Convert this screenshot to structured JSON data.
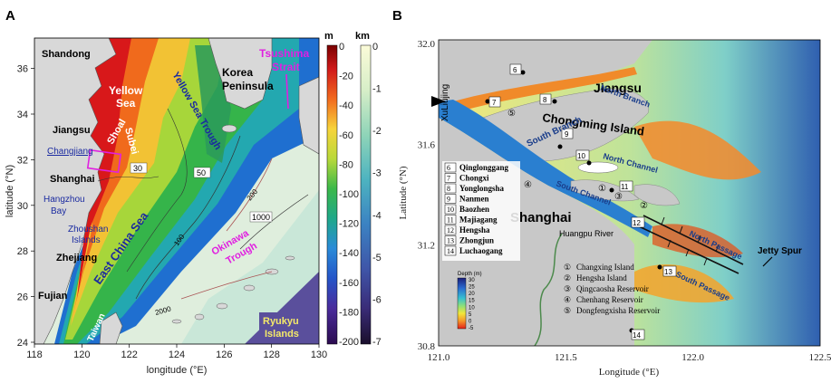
{
  "figure": {
    "panel_a": {
      "letter": "A",
      "y_axis_label": "latitude (°N)",
      "x_axis_label": "longitude (°E)",
      "x_ticks": [
        "118",
        "120",
        "122",
        "124",
        "126",
        "128",
        "130"
      ],
      "y_ticks": [
        "24",
        "26",
        "28",
        "30",
        "32",
        "34",
        "36"
      ],
      "colorbar_m": {
        "unit": "m",
        "ticks": [
          "0",
          "-20",
          "-40",
          "-60",
          "-80",
          "-100",
          "-120",
          "-140",
          "-160",
          "-180",
          "-200"
        ]
      },
      "colorbar_km": {
        "unit": "km",
        "ticks": [
          "0",
          "-1",
          "-2",
          "-3",
          "-4",
          "-5",
          "-6",
          "-7"
        ]
      },
      "labels": {
        "shandong": "Shandong",
        "yellow_sea_1": "Yellow",
        "yellow_sea_2": "Sea",
        "yellow_sea_trough": "Yellow Sea Trough",
        "korea_1": "Korea",
        "korea_2": "Peninsula",
        "tsushima_1": "Tsushima",
        "tsushima_2": "Strait",
        "jiangsu": "Jiangsu",
        "subei_1": "Subei",
        "subei_2": "Shoal",
        "changjiang": "Changjiang",
        "shanghai": "Shanghai",
        "hangzhou_1": "Hangzhou",
        "hangzhou_2": "Bay",
        "zhoushan_1": "Zhoushan",
        "zhoushan_2": "Islands",
        "zhejiang": "Zhejiang",
        "east_china_sea": "East China Sea",
        "okinawa_1": "Okinawa",
        "okinawa_2": "Trough",
        "fujian": "Fujian",
        "taiwan": "Taiwan",
        "ryukyu_1": "Ryukyu",
        "ryukyu_2": "Islands",
        "contour_30": "30",
        "contour_50": "50",
        "contour_100": "100",
        "contour_200": "200",
        "contour_1000": "1000",
        "contour_2000": "2000"
      }
    },
    "panel_b": {
      "letter": "B",
      "y_axis_label": "Latitude (°N)",
      "x_axis_label": "Longitude (°E)",
      "x_ticks": [
        "121.0",
        "121.5",
        "122.0",
        "122.5"
      ],
      "y_ticks": [
        "30.8",
        "31.2",
        "31.6",
        "32.0"
      ],
      "labels": {
        "jiangsu": "Jiangsu",
        "chongming": "Chongming Island",
        "shanghai": "Shanghai",
        "xuliujing": "XuLiujing",
        "north_branch": "North Branch",
        "south_branch": "South Branch",
        "north_channel": "North Channel",
        "south_channel": "South Channel",
        "north_passage": "North Passage",
        "south_passage": "South Passage",
        "jetty_spur": "Jetty Spur",
        "huangpu": "Huangpu River"
      },
      "stations": [
        {
          "num": "6",
          "name": "Qinglonggang"
        },
        {
          "num": "7",
          "name": "Chongxi"
        },
        {
          "num": "8",
          "name": "Yonglongsha"
        },
        {
          "num": "9",
          "name": "Nanmen"
        },
        {
          "num": "10",
          "name": "Baozhen"
        },
        {
          "num": "11",
          "name": "Majiagang"
        },
        {
          "num": "12",
          "name": "Hengsha"
        },
        {
          "num": "13",
          "name": "Zhongjun"
        },
        {
          "num": "14",
          "name": "Luchaogang"
        }
      ],
      "islands": [
        {
          "num": "①",
          "name": "Changxing Island"
        },
        {
          "num": "②",
          "name": "Hengsha Island"
        },
        {
          "num": "③",
          "name": "Qingcaosha Reservoir"
        },
        {
          "num": "④",
          "name": "Chenhang Reservoir"
        },
        {
          "num": "⑤",
          "name": "Dongfengxisha Reservoir"
        }
      ],
      "map_marks": [
        "6",
        "7",
        "8",
        "9",
        "10",
        "11",
        "12",
        "13",
        "14",
        "①",
        "②",
        "③",
        "④",
        "⑤"
      ],
      "depth_legend": {
        "title": "Depth (m)",
        "ticks": [
          "30",
          "25",
          "20",
          "15",
          "10",
          "5",
          "0",
          "-5"
        ]
      }
    }
  }
}
